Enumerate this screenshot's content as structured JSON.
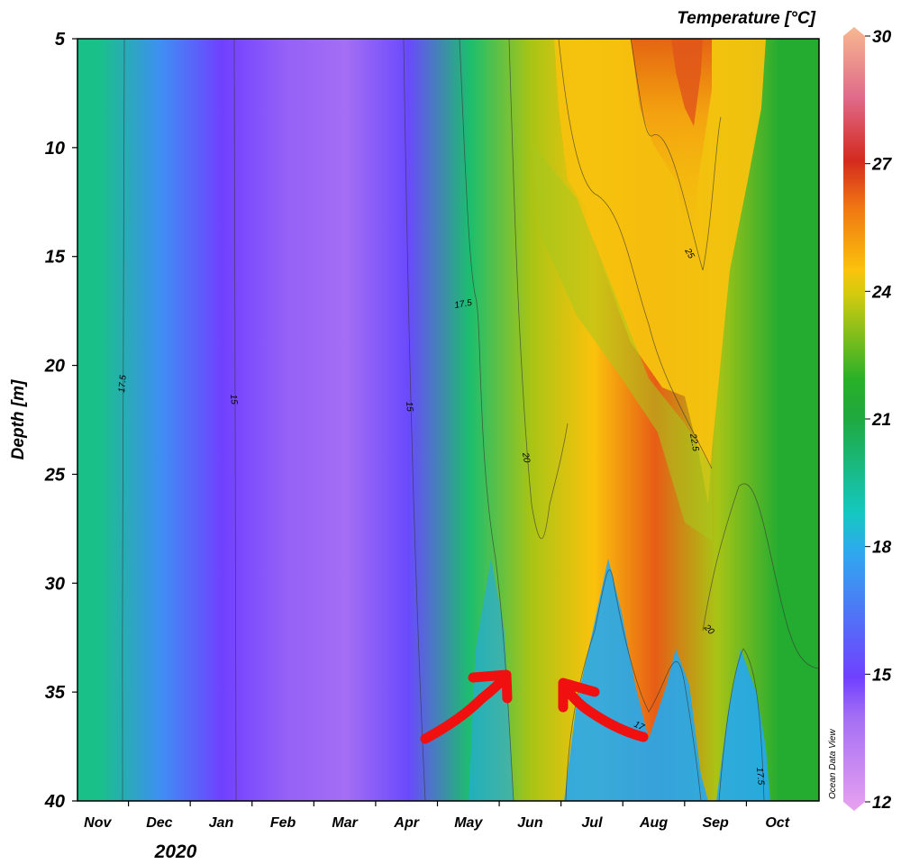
{
  "chart_data": {
    "type": "heatmap",
    "title": "",
    "ylabel": "Depth [m]",
    "xlabel": "",
    "year_label": "2020",
    "colorbar_title": "Temperature [°C]",
    "watermark": "Ocean Data View",
    "x_ticks": [
      "Nov",
      "Dec",
      "Jan",
      "Feb",
      "Mar",
      "Apr",
      "May",
      "Jun",
      "Jul",
      "Aug",
      "Sep",
      "Oct"
    ],
    "y_ticks": [
      "5",
      "10",
      "15",
      "20",
      "25",
      "30",
      "35",
      "40"
    ],
    "ylim": [
      5,
      40
    ],
    "colorbar_ticks": [
      "30",
      "27",
      "24",
      "21",
      "18",
      "15",
      "12"
    ],
    "zlim": [
      12,
      30
    ],
    "contour_labels": [
      "17.5",
      "15",
      "15",
      "17.5",
      "20",
      "25",
      "22.5",
      "20",
      "17",
      "17.5"
    ],
    "annotations": [
      {
        "type": "red-arrow",
        "pointing": "up-right",
        "month": "Jun",
        "depth": 34
      },
      {
        "type": "red-arrow",
        "pointing": "up-left",
        "month": "Jun",
        "depth": 34
      }
    ],
    "surface_temperature_by_month": [
      {
        "month": "Nov",
        "temp": 19.0
      },
      {
        "month": "Dec",
        "temp": 16.5
      },
      {
        "month": "Jan",
        "temp": 15.0
      },
      {
        "month": "Feb",
        "temp": 14.3
      },
      {
        "month": "Mar",
        "temp": 14.0
      },
      {
        "month": "Apr",
        "temp": 15.2
      },
      {
        "month": "May",
        "temp": 19.5
      },
      {
        "month": "Jun",
        "temp": 22.5
      },
      {
        "month": "Jul",
        "temp": 24.0
      },
      {
        "month": "Aug",
        "temp": 26.0
      },
      {
        "month": "Sep",
        "temp": 22.5
      },
      {
        "month": "Oct",
        "temp": 20.5
      }
    ]
  }
}
